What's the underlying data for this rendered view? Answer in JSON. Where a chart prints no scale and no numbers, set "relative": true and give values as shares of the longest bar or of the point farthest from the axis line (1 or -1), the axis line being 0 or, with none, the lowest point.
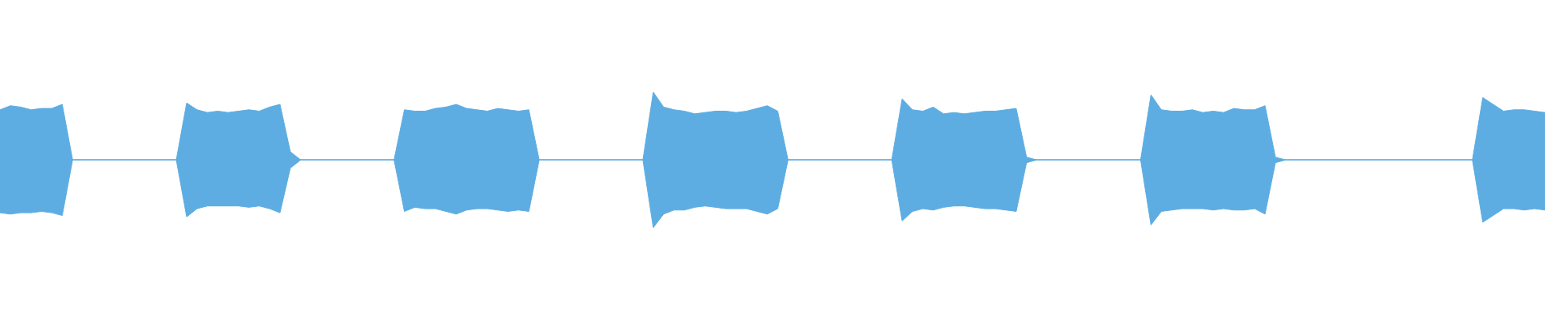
{
  "chart_data": {
    "type": "area",
    "relative": true,
    "categories": [
      null,
      null,
      null,
      null,
      null,
      null,
      null,
      null,
      null,
      null,
      null,
      null,
      null,
      null,
      null,
      null,
      null,
      null,
      null,
      null,
      null,
      null,
      null,
      null,
      null,
      null,
      null,
      null,
      null,
      null,
      null,
      null,
      null,
      null,
      null,
      null,
      null,
      null,
      null,
      null,
      null,
      null,
      null,
      null,
      null,
      null,
      null,
      null,
      null,
      null,
      null,
      null,
      null,
      null,
      null,
      null,
      null,
      null,
      null,
      null,
      null,
      null,
      null,
      null,
      null,
      null,
      null,
      null,
      null,
      null,
      null,
      null,
      null,
      null,
      null,
      null,
      null,
      null,
      null,
      null,
      null,
      null,
      null,
      null,
      null,
      null,
      null,
      null,
      null,
      null,
      null,
      null,
      null,
      null,
      null,
      null,
      null,
      null,
      null,
      null,
      null,
      null,
      null,
      null,
      null,
      null,
      null,
      null,
      null,
      null,
      null,
      null,
      null,
      null,
      null,
      null,
      null,
      null,
      null,
      null,
      null,
      null,
      null,
      null,
      null,
      null,
      null,
      null,
      null,
      null,
      null,
      null,
      null,
      null,
      null,
      null,
      null,
      null,
      null,
      null,
      null,
      null,
      null,
      null,
      null,
      null,
      null,
      null,
      null,
      null
    ],
    "series": [
      {
        "color": "#5dade2",
        "values": [
          0.74,
          0.8,
          0.78,
          0.74,
          0.76,
          0.76,
          0.82,
          0,
          0,
          0,
          0,
          0,
          0,
          0,
          0,
          0,
          0,
          0,
          0.84,
          0.74,
          0.7,
          0.72,
          0.7,
          0.72,
          0.74,
          0.72,
          0.78,
          0.82,
          0.12,
          0,
          0,
          0,
          0,
          0,
          0,
          0,
          0,
          0,
          0,
          0.74,
          0.72,
          0.72,
          0.76,
          0.78,
          0.82,
          0.76,
          0.74,
          0.72,
          0.76,
          0.74,
          0.72,
          0.74,
          0,
          0,
          0,
          0,
          0,
          0,
          0,
          0,
          0,
          0,
          0,
          1,
          0.78,
          0.74,
          0.72,
          0.68,
          0.7,
          0.72,
          0.72,
          0.7,
          0.72,
          0.76,
          0.8,
          0.72,
          0,
          0,
          0,
          0,
          0,
          0,
          0,
          0,
          0,
          0,
          0,
          0.9,
          0.74,
          0.72,
          0.78,
          0.68,
          0.7,
          0.68,
          0.7,
          0.72,
          0.72,
          0.74,
          0.76,
          0.04,
          0,
          0,
          0,
          0,
          0,
          0,
          0,
          0,
          0,
          0,
          0,
          0.96,
          0.74,
          0.72,
          0.72,
          0.74,
          0.7,
          0.72,
          0.7,
          0.76,
          0.74,
          0.74,
          0.8,
          0.04,
          0,
          0,
          0,
          0,
          0,
          0,
          0,
          0,
          0,
          0,
          0,
          0,
          0,
          0,
          0,
          0,
          0,
          0,
          0,
          0.92,
          0.82,
          0.72,
          0.74,
          0.74,
          0.72,
          0.7
        ]
      },
      {
        "color": "#5dade2",
        "values": [
          -0.78,
          -0.8,
          -0.78,
          -0.78,
          -0.76,
          -0.78,
          -0.82,
          0,
          0,
          0,
          0,
          0,
          0,
          0,
          0,
          0,
          0,
          0,
          -0.84,
          -0.72,
          -0.68,
          -0.68,
          -0.68,
          -0.68,
          -0.7,
          -0.68,
          -0.72,
          -0.78,
          -0.12,
          0,
          0,
          0,
          0,
          0,
          0,
          0,
          0,
          0,
          0,
          -0.76,
          -0.7,
          -0.72,
          -0.72,
          -0.76,
          -0.8,
          -0.74,
          -0.72,
          -0.72,
          -0.74,
          -0.76,
          -0.74,
          -0.76,
          0,
          0,
          0,
          0,
          0,
          0,
          0,
          0,
          0,
          0,
          0,
          -1,
          -0.8,
          -0.74,
          -0.74,
          -0.7,
          -0.68,
          -0.7,
          -0.72,
          -0.72,
          -0.72,
          -0.76,
          -0.8,
          -0.72,
          0,
          0,
          0,
          0,
          0,
          0,
          0,
          0,
          0,
          0,
          0,
          -0.9,
          -0.76,
          -0.72,
          -0.74,
          -0.7,
          -0.68,
          -0.68,
          -0.7,
          -0.72,
          -0.72,
          -0.74,
          -0.76,
          -0.04,
          0,
          0,
          0,
          0,
          0,
          0,
          0,
          0,
          0,
          0,
          0,
          -0.96,
          -0.76,
          -0.74,
          -0.72,
          -0.72,
          -0.72,
          -0.74,
          -0.72,
          -0.74,
          -0.74,
          -0.72,
          -0.8,
          -0.04,
          0,
          0,
          0,
          0,
          0,
          0,
          0,
          0,
          0,
          0,
          0,
          0,
          0,
          0,
          0,
          0,
          0,
          0,
          0,
          -0.92,
          -0.82,
          -0.72,
          -0.72,
          -0.74,
          -0.72,
          -0.74
        ]
      }
    ],
    "ref_lines": [
      {
        "axis": "y",
        "value": 0,
        "color": "#5dade2"
      }
    ]
  }
}
